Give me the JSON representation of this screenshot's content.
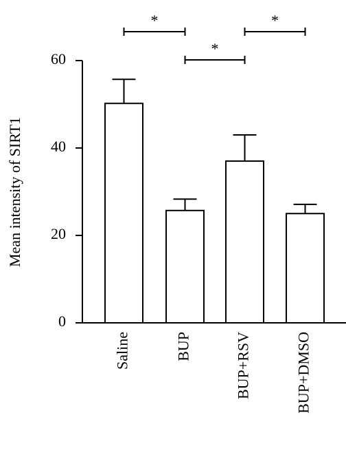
{
  "chart_data": {
    "type": "bar",
    "y_label": "Mean intensity of SIRT1",
    "categories": [
      "Saline",
      "BUP",
      "BUP+RSV",
      "BUP+DMSO"
    ],
    "values": [
      50.2,
      25.7,
      37.0,
      25.0
    ],
    "errors": [
      5.5,
      2.6,
      6.0,
      2.1
    ],
    "color": "#ffffff",
    "ylim": [
      0,
      60
    ],
    "yticks": [
      0,
      20,
      40,
      60
    ],
    "comparisons": [
      {
        "label": "*",
        "pair": [
          0,
          1
        ]
      },
      {
        "label": "*",
        "pair": [
          1,
          2
        ]
      },
      {
        "label": "*",
        "pair": [
          2,
          3
        ]
      }
    ]
  }
}
